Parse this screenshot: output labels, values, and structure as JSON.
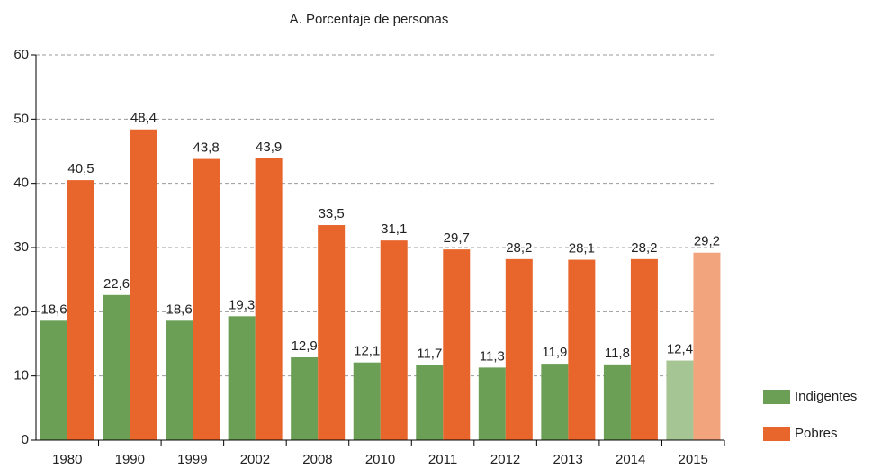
{
  "chart_data": {
    "type": "bar",
    "title": "A. Porcentaje de personas",
    "categories": [
      "1980",
      "1990",
      "1999",
      "2002",
      "2008",
      "2010",
      "2011",
      "2012",
      "2013",
      "2014",
      "2015"
    ],
    "series": [
      {
        "name": "Indigentes",
        "color": "#6a9f55",
        "colors": [
          "#6a9f55",
          "#6a9f55",
          "#6a9f55",
          "#6a9f55",
          "#6a9f55",
          "#6a9f55",
          "#6a9f55",
          "#6a9f55",
          "#6a9f55",
          "#6a9f55",
          "#a5c594"
        ],
        "values": [
          18.6,
          22.6,
          18.6,
          19.3,
          12.9,
          12.1,
          11.7,
          11.3,
          11.9,
          11.8,
          12.4
        ],
        "value_labels": [
          "18,6",
          "22,6",
          "18,6",
          "19,3",
          "12,9",
          "12,1",
          "11,7",
          "11,3",
          "11,9",
          "11,8",
          "12,4"
        ]
      },
      {
        "name": "Pobres",
        "color": "#e8662c",
        "colors": [
          "#e8662c",
          "#e8662c",
          "#e8662c",
          "#e8662c",
          "#e8662c",
          "#e8662c",
          "#e8662c",
          "#e8662c",
          "#e8662c",
          "#e8662c",
          "#f2a47c"
        ],
        "values": [
          40.5,
          48.4,
          43.8,
          43.9,
          33.5,
          31.1,
          29.7,
          28.2,
          28.1,
          28.2,
          29.2
        ],
        "value_labels": [
          "40,5",
          "48,4",
          "43,8",
          "43,9",
          "33,5",
          "31,1",
          "29,7",
          "28,2",
          "28,1",
          "28,2",
          "29,2"
        ]
      }
    ],
    "ylim": [
      0,
      60
    ],
    "yticks": [
      0,
      10,
      20,
      30,
      40,
      50,
      60
    ],
    "grid": true,
    "legend": "bottom-right"
  }
}
